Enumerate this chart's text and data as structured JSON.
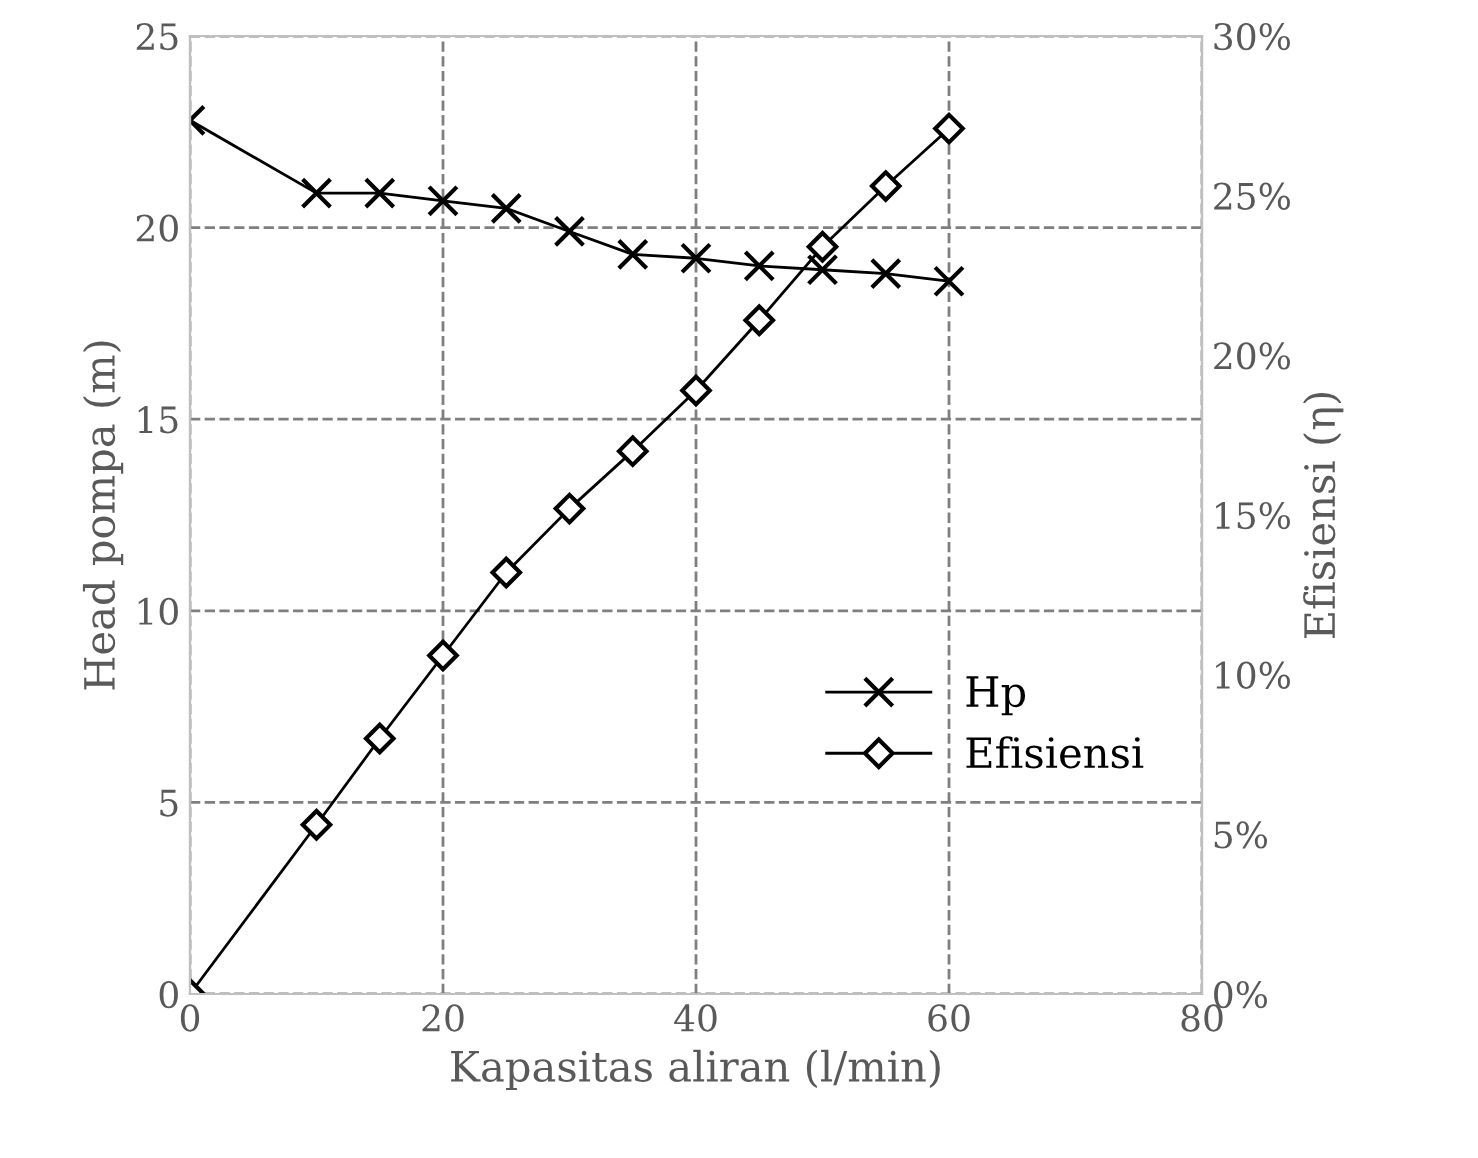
{
  "chart_data": {
    "type": "line",
    "xlabel": "Kapasitas aliran (l/min)",
    "ylabel": "Head pompa (m)",
    "y2label": "Efisiensi (η)",
    "xlim": [
      0,
      80
    ],
    "xticks": [
      0,
      20,
      40,
      60,
      80
    ],
    "ylim": [
      0,
      25
    ],
    "yticks": [
      0,
      5,
      10,
      15,
      20,
      25
    ],
    "y2lim": [
      0,
      30
    ],
    "y2ticks": [
      {
        "value": 0,
        "label": "0%"
      },
      {
        "value": 5,
        "label": "5%"
      },
      {
        "value": 10,
        "label": "10%"
      },
      {
        "value": 15,
        "label": "15%"
      },
      {
        "value": 20,
        "label": "20%"
      },
      {
        "value": 25,
        "label": "25%"
      },
      {
        "value": 30,
        "label": "30%"
      }
    ],
    "grid": true,
    "legend": "right",
    "line_style": "solid",
    "series": [
      {
        "name": "Hp",
        "color": "#000000",
        "marker": "cross",
        "x": [
          0,
          10,
          15,
          20,
          25,
          30,
          35,
          40,
          45,
          50,
          55,
          60
        ],
        "values": [
          22.8,
          20.9,
          20.9,
          20.7,
          20.5,
          19.9,
          19.3,
          19.2,
          19.0,
          18.9,
          18.8,
          18.6
        ]
      },
      {
        "name": "Efisiensi",
        "color": "#000000",
        "marker": "diamond",
        "axis": "y2",
        "x": [
          0,
          10,
          15,
          20,
          25,
          30,
          35,
          40,
          45,
          50,
          55,
          60
        ],
        "values": [
          0,
          5.3,
          8.0,
          10.6,
          13.2,
          15.2,
          17.0,
          18.9,
          21.1,
          23.4,
          25.3,
          27.1
        ]
      }
    ]
  }
}
